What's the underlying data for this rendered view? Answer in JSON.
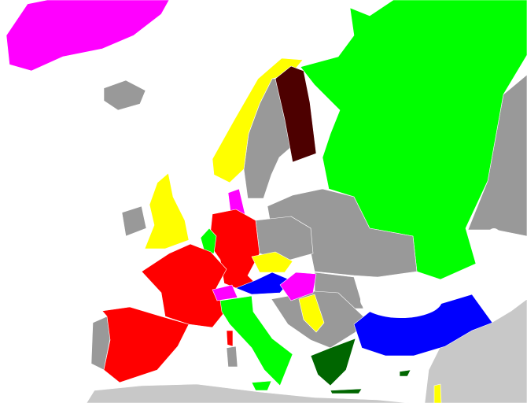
{
  "map": {
    "sea_color": "#ffffff",
    "colors": {
      "greenland": "#ff00ff",
      "iceland": "#999999",
      "norway": "#ffff00",
      "sweden": "#999999",
      "finland": "#4d0000",
      "russia": "#00ff00",
      "east_other": "#999999",
      "eastern_europe": "#999999",
      "united_kingdom": "#ffff00",
      "ireland": "#999999",
      "france": "#ff0000",
      "spain": "#ff0000",
      "portugal": "#999999",
      "germany": "#ff0000",
      "benelux": "#00ff00",
      "denmark": "#ff00ff",
      "poland": "#999999",
      "czechia": "#ffff00",
      "austria": "#0000ff",
      "switzerland": "#ff00ff",
      "hungary": "#ff00ff",
      "italy": "#00ff00",
      "sardinia": "#999999",
      "corsica": "#ff0000",
      "balkans": "#999999",
      "serbia": "#ffff00",
      "romania": "#999999",
      "greece": "#006600",
      "turkey": "#0000ff",
      "cyprus": "#006600",
      "outside_europe": "#c8c8c8",
      "israel": "#ffff00"
    }
  }
}
